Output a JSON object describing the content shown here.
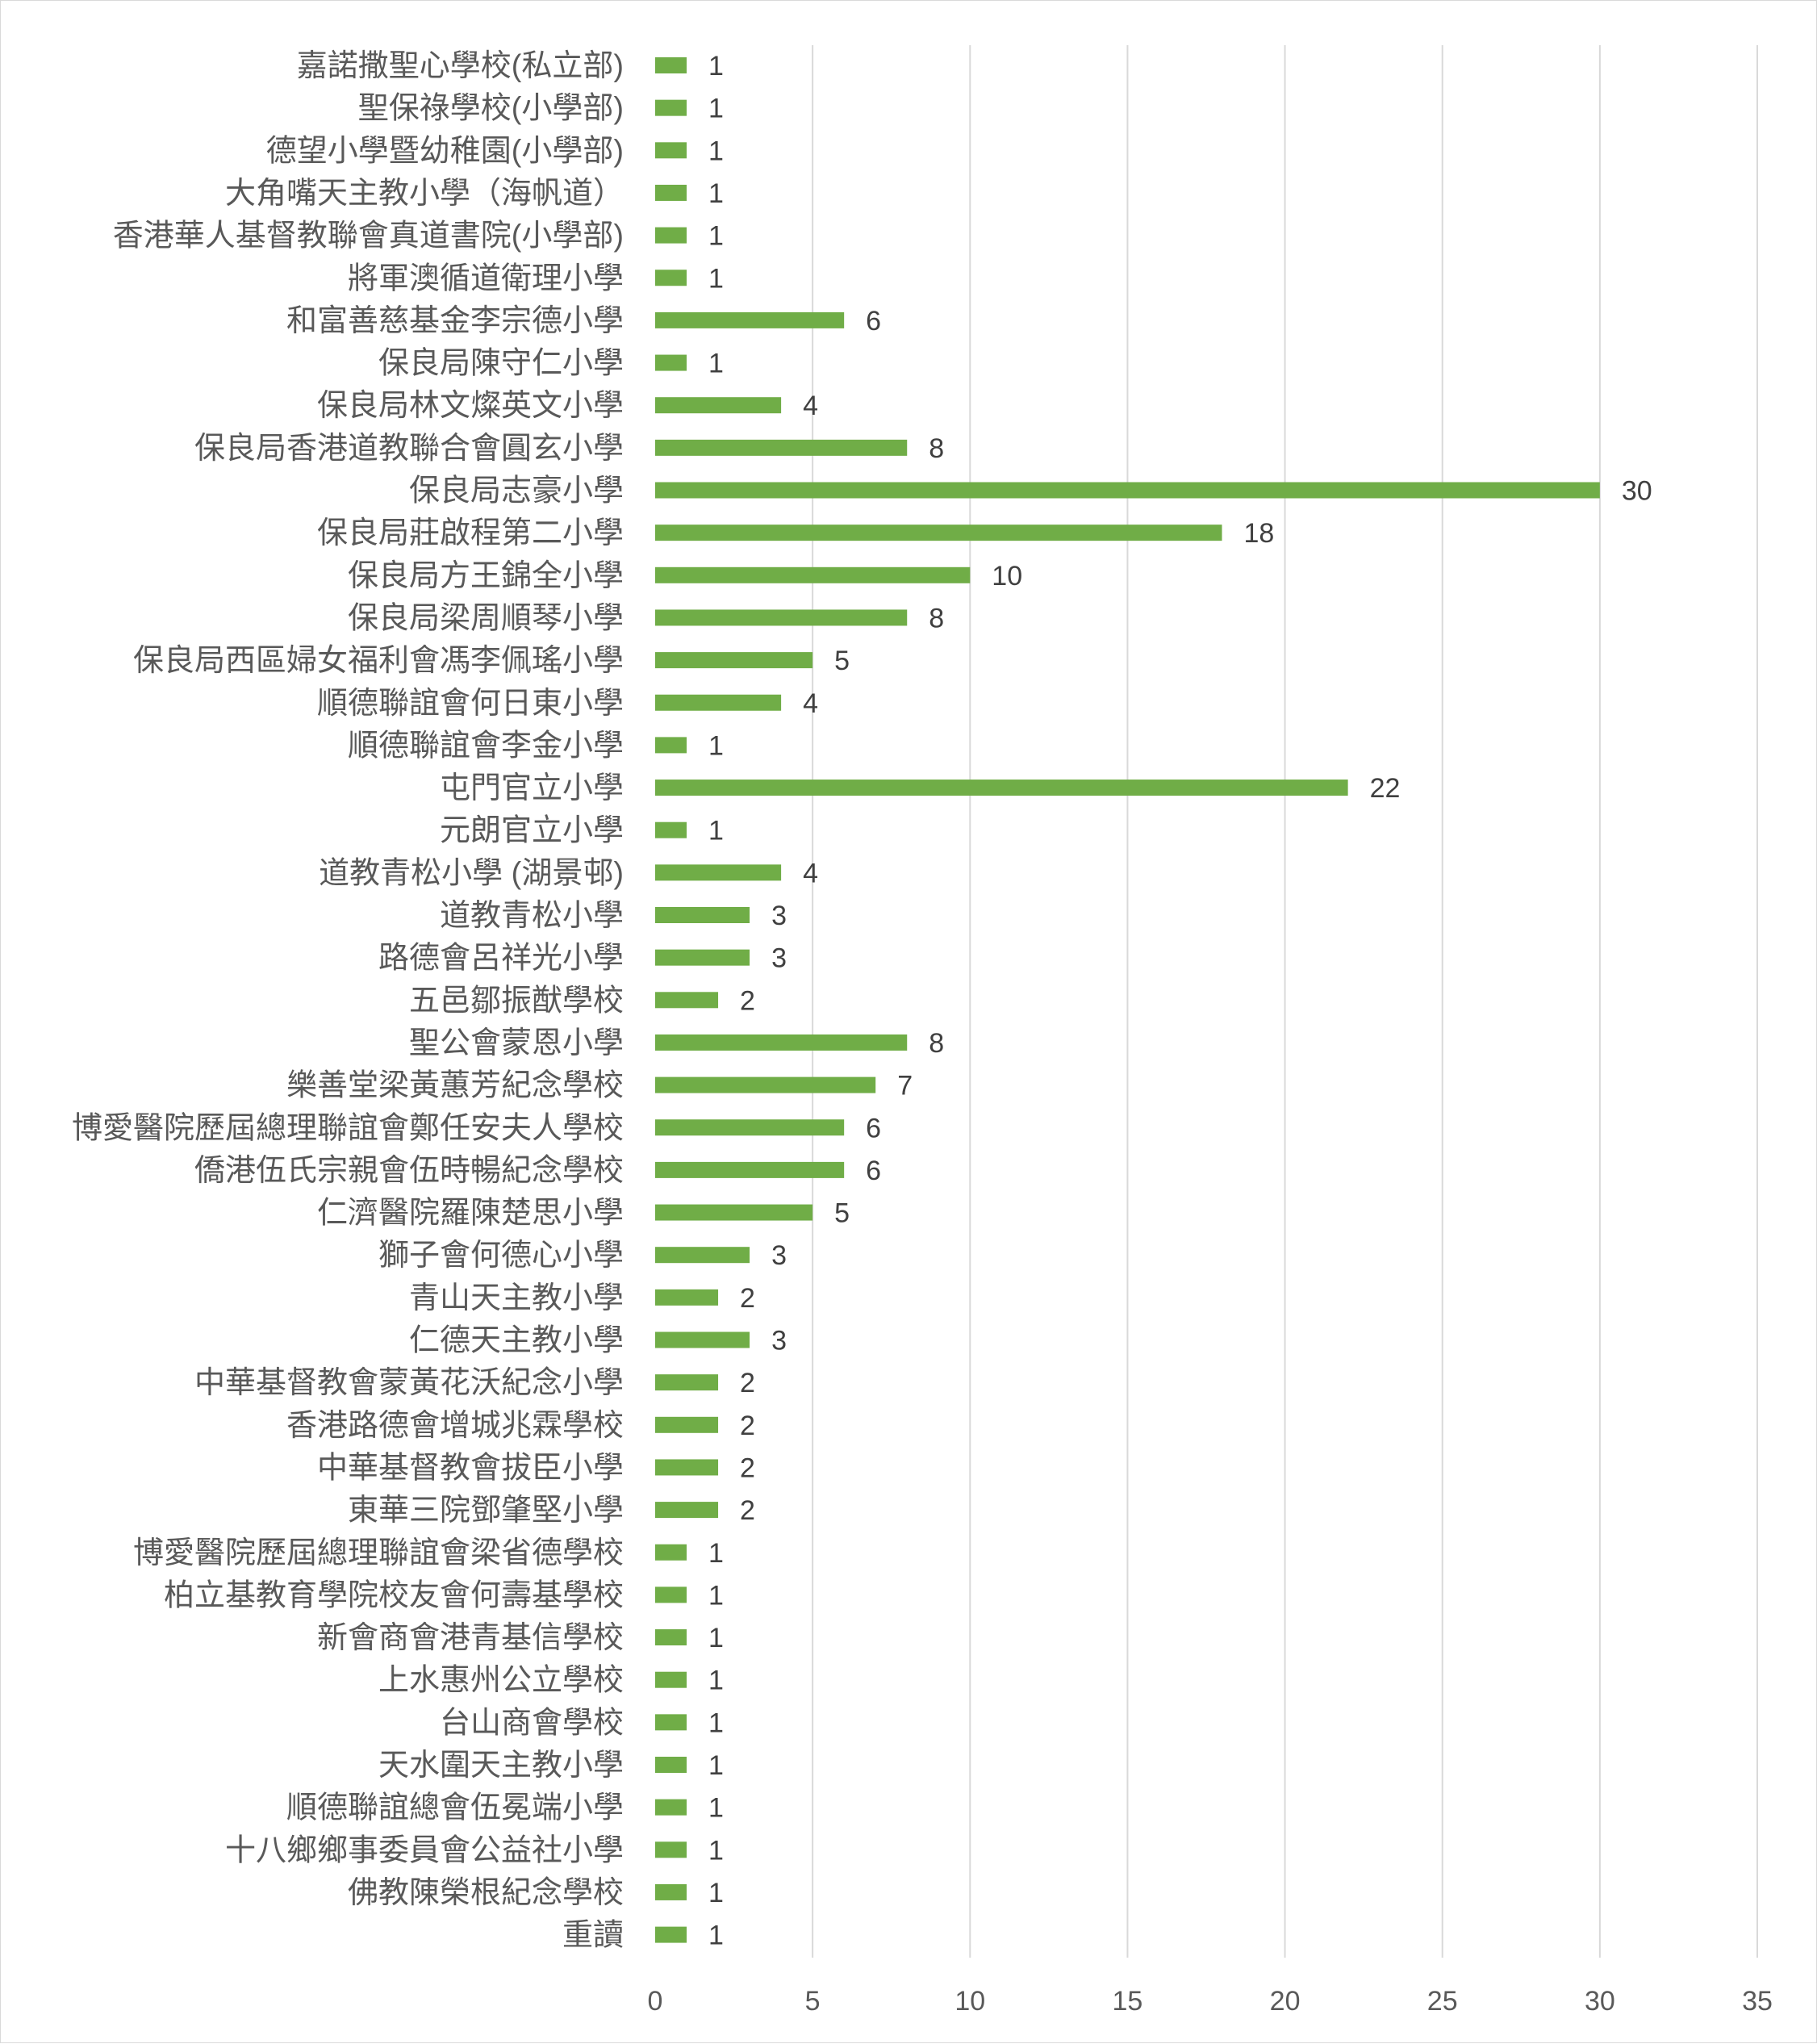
{
  "colors": {
    "bar": "#70ad47",
    "grid": "#d9d9d9",
    "text": "#595959"
  },
  "chart_data": {
    "type": "bar",
    "orientation": "horizontal",
    "title": "",
    "xlabel": "",
    "ylabel": "",
    "xlim": [
      0,
      35
    ],
    "ticks": [
      0,
      5,
      10,
      15,
      20,
      25,
      30,
      35
    ],
    "grid": true,
    "legend": "none",
    "data_labels": true,
    "categories": [
      "嘉諾撒聖心學校(私立部)",
      "聖保祿學校(小學部)",
      "德望小學暨幼稚園(小學部)",
      "大角嘴天主教小學（海帆道）",
      "香港華人基督教聯會真道書院(小學部)",
      "將軍澳循道衛理小學",
      "和富善慈基金李宗德小學",
      "保良局陳守仁小學",
      "保良局林文燦英文小學",
      "保良局香港道教聯合會圓玄小學",
      "保良局志豪小學",
      "保良局莊啟程第二小學",
      "保良局方王錦全小學",
      "保良局梁周順琴小學",
      "保良局西區婦女福利會馮李佩瑤小學",
      "順德聯誼會何日東小學",
      "順德聯誼會李金小學",
      "屯門官立小學",
      "元朗官立小學",
      "道教青松小學 (湖景邨)",
      "道教青松小學",
      "路德會呂祥光小學",
      "五邑鄒振猷學校",
      "聖公會蒙恩小學",
      "樂善堂梁黃蕙芳紀念學校",
      "博愛醫院歷屆總理聯誼會鄭任安夫人學校",
      "僑港伍氏宗親會伍時暢紀念學校",
      "仁濟醫院羅陳楚思小學",
      "獅子會何德心小學",
      "青山天主教小學",
      "仁德天主教小學",
      "中華基督教會蒙黃花沃紀念小學",
      "香港路德會增城兆霖學校",
      "中華基督教會拔臣小學",
      "東華三院鄧肇堅小學",
      "博愛醫院歷屆總理聯誼會梁省德學校",
      "柏立基教育學院校友會何壽基學校",
      "新會商會港青基信學校",
      "上水惠州公立學校",
      "台山商會學校",
      "天水圍天主教小學",
      "順德聯誼總會伍冕端小學",
      "十八鄉鄉事委員會公益社小學",
      "佛教陳榮根紀念學校",
      "重讀"
    ],
    "values": [
      1,
      1,
      1,
      1,
      1,
      1,
      6,
      1,
      4,
      8,
      30,
      18,
      10,
      8,
      5,
      4,
      1,
      22,
      1,
      4,
      3,
      3,
      2,
      8,
      7,
      6,
      6,
      5,
      3,
      2,
      3,
      2,
      2,
      2,
      2,
      1,
      1,
      1,
      1,
      1,
      1,
      1,
      1,
      1,
      1
    ]
  }
}
